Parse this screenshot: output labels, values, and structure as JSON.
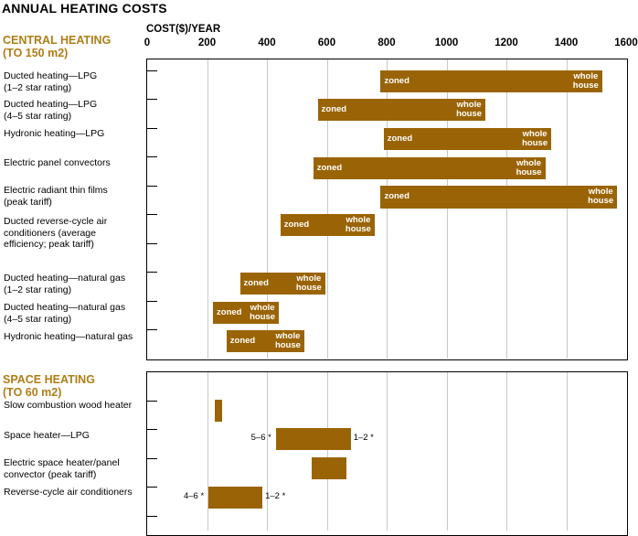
{
  "header": {
    "main_title": "ANNUAL HEATING COSTS",
    "axis_title": "COST($)/YEAR"
  },
  "chart_data": {
    "type": "bar",
    "subtype": "floating-range",
    "title": "ANNUAL HEATING COSTS",
    "xlabel": "COST($)/YEAR",
    "xlim": [
      0,
      1600
    ],
    "ticks": [
      0,
      200,
      400,
      600,
      800,
      1000,
      1200,
      1400,
      1600
    ],
    "grid": true,
    "colors": {
      "bar": "#9a6406",
      "section_title": "#b07d16",
      "grid": "#c8c8c8"
    },
    "sections": [
      {
        "title": "CENTRAL HEATING",
        "subtitle": "(TO 150 m2)",
        "rows": [
          {
            "label": "Ducted heating—LPG\n(1–2 star rating)",
            "low": 780,
            "high": 1520,
            "low_label": "zoned",
            "high_label": "whole\nhouse"
          },
          {
            "label": "Ducted heating—LPG\n(4–5 star rating)",
            "low": 570,
            "high": 1130,
            "low_label": "zoned",
            "high_label": "whole\nhouse"
          },
          {
            "label": "Hydronic heating—LPG",
            "low": 790,
            "high": 1350,
            "low_label": "zoned",
            "high_label": "whole\nhouse"
          },
          {
            "label": "Electric panel convectors",
            "low": 555,
            "high": 1330,
            "low_label": "zoned",
            "high_label": "whole\nhouse"
          },
          {
            "label": "Electric radiant thin films\n(peak tariff)",
            "low": 780,
            "high": 1570,
            "low_label": "zoned",
            "high_label": "whole\nhouse"
          },
          {
            "label": "Ducted reverse-cycle air\nconditioners (average\nefficiency; peak tariff)",
            "low": 445,
            "high": 760,
            "low_label": "zoned",
            "high_label": "whole\nhouse"
          },
          {
            "label": "Ducted heating—natural gas\n(1–2 star rating)",
            "low": 310,
            "high": 595,
            "low_label": "zoned",
            "high_label": "whole\nhouse"
          },
          {
            "label": "Ducted heating—natural gas\n(4–5 star rating)",
            "low": 220,
            "high": 440,
            "low_label": "zoned",
            "high_label": "whole\nhouse"
          },
          {
            "label": "Hydronic heating—natural gas",
            "low": 265,
            "high": 525,
            "low_label": "zoned",
            "high_label": "whole\nhouse"
          }
        ]
      },
      {
        "title": "SPACE HEATING",
        "subtitle": "(TO 60 m2)",
        "rows": [
          {
            "label": "Slow combustion wood heater",
            "low": 225,
            "high": 250,
            "low_label": "",
            "high_label": ""
          },
          {
            "label": "Space heater—LPG",
            "low": 430,
            "high": 680,
            "low_label": "5–6 *",
            "high_label": "1–2 *"
          },
          {
            "label": "Electric space heater/panel\nconvector (peak tariff)",
            "low": 550,
            "high": 665,
            "low_label": "",
            "high_label": ""
          },
          {
            "label": "Reverse-cycle air conditioners",
            "low": 205,
            "high": 385,
            "low_label": "4–6 *",
            "high_label": "1–2 *"
          }
        ]
      }
    ]
  }
}
